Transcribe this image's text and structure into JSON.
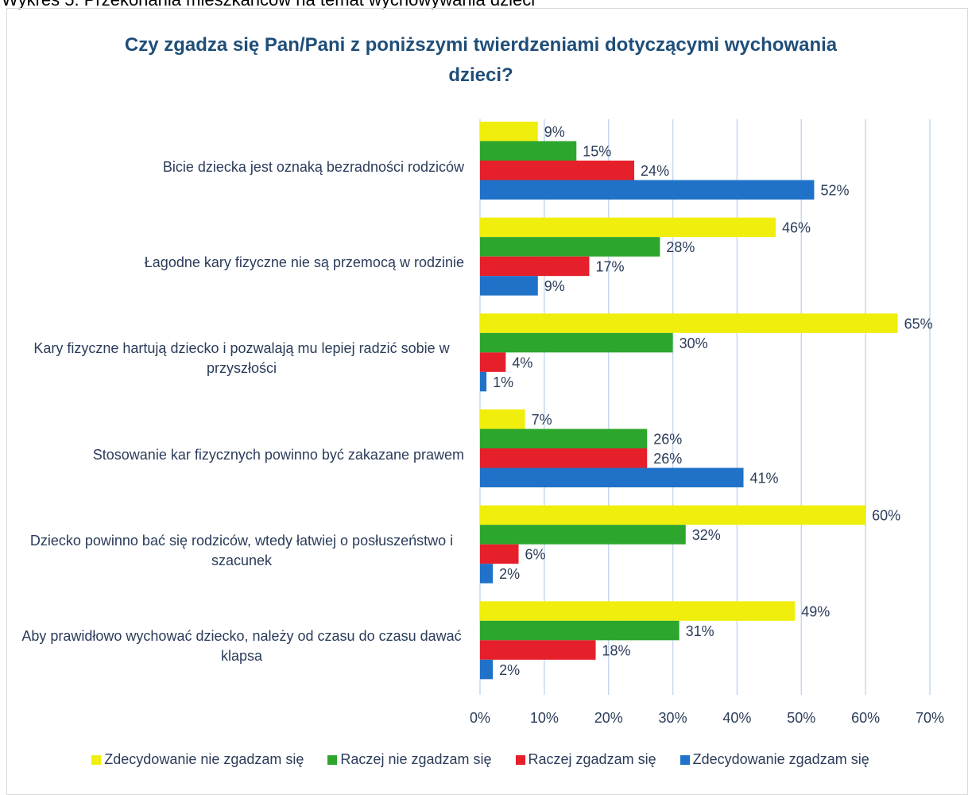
{
  "caption": "Wykres 5. Przekonania mieszkańców na temat wychowywania dzieci",
  "chart_data": {
    "type": "hbar",
    "title": "Czy zgadza się Pan/Pani z poniższymi twierdzeniami dotyczącymi wychowania dzieci?",
    "categories": [
      "Bicie dziecka jest oznaką bezradności rodziców",
      "Łagodne kary fizyczne nie są przemocą w rodzinie",
      "Kary fizyczne hartują dziecko i pozwalają mu lepiej radzić sobie w przyszłości",
      "Stosowanie kar fizycznych powinno być zakazane prawem",
      "Dziecko powinno bać się rodziców, wtedy łatwiej o posłuszeństwo i szacunek",
      "Aby prawidłowo wychować dziecko, należy od czasu do czasu dawać klapsa"
    ],
    "series": [
      {
        "name": "Zdecydowanie nie zgadzam się",
        "color": "#f0ee0c",
        "values": [
          9,
          46,
          65,
          7,
          60,
          49
        ],
        "value_labels": [
          "9%",
          "46%",
          "65%",
          "7%",
          "60%",
          "49%"
        ]
      },
      {
        "name": "Raczej nie zgadzam się",
        "color": "#2da62d",
        "values": [
          15,
          28,
          30,
          26,
          32,
          31
        ],
        "value_labels": [
          "15%",
          "28%",
          "30%",
          "26%",
          "32%",
          "31%"
        ]
      },
      {
        "name": "Raczej zgadzam się",
        "color": "#e5202b",
        "values": [
          24,
          17,
          4,
          26,
          6,
          18
        ],
        "value_labels": [
          "24%",
          "17%",
          "4%",
          "26%",
          "6%",
          "18%"
        ]
      },
      {
        "name": "Zdecydowanie zgadzam się",
        "color": "#1f72c8",
        "values": [
          52,
          9,
          1,
          41,
          2,
          2
        ],
        "value_labels": [
          "52%",
          "9%",
          "1%",
          "41%",
          "2%",
          "2%"
        ]
      }
    ],
    "xlim": [
      0,
      70
    ],
    "xticks": [
      {
        "value": 0,
        "label": "0%"
      },
      {
        "value": 10,
        "label": "10%"
      },
      {
        "value": 20,
        "label": "20%"
      },
      {
        "value": 30,
        "label": "30%"
      },
      {
        "value": 40,
        "label": "40%"
      },
      {
        "value": 50,
        "label": "50%"
      },
      {
        "value": 60,
        "label": "60%"
      },
      {
        "value": 70,
        "label": "70%"
      }
    ],
    "grid": true,
    "legend": "bottom"
  }
}
